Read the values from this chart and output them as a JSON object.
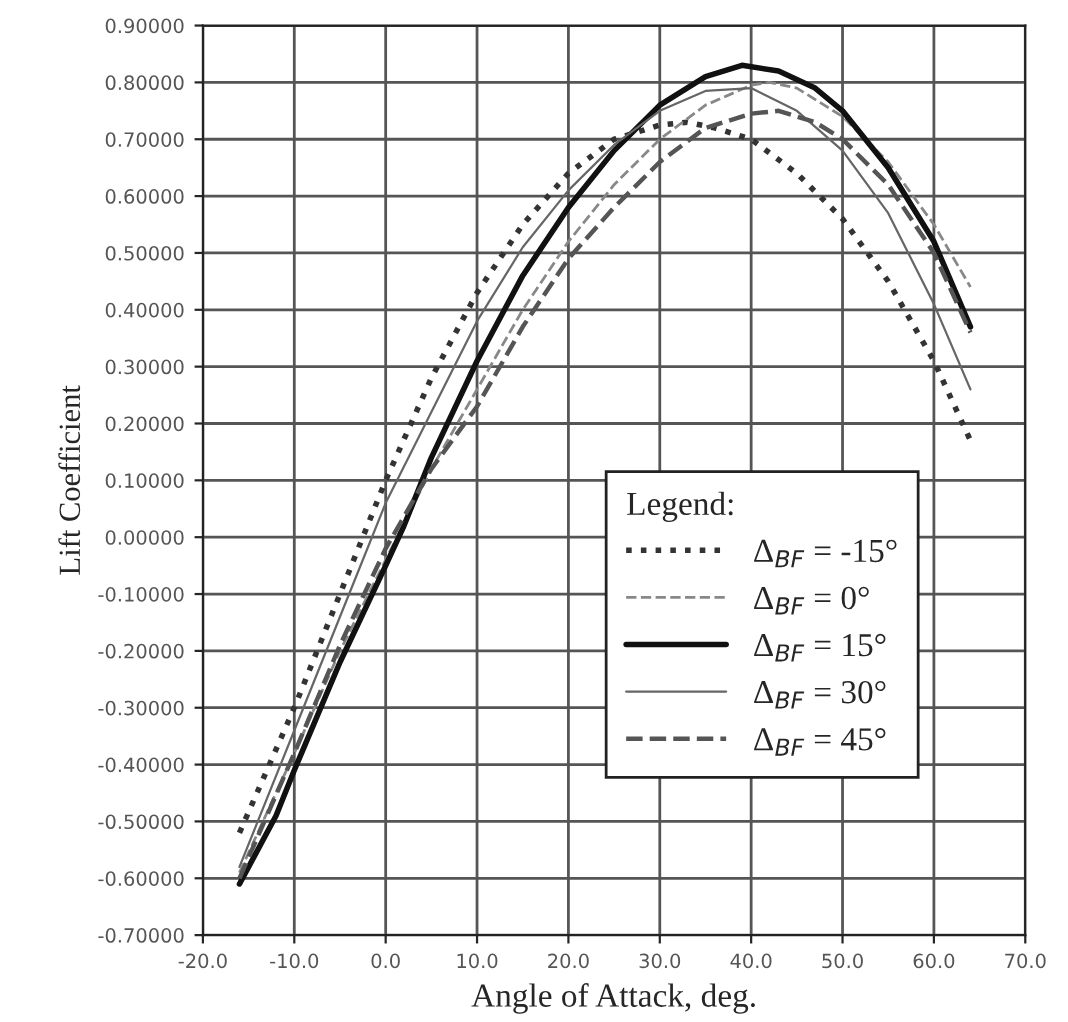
{
  "chart_data": {
    "type": "line",
    "xlabel": "Angle of Attack, deg.",
    "ylabel": "Lift Coefficient",
    "legend_title": "Legend:",
    "xlim": [
      -20,
      70
    ],
    "xticks": [
      {
        "value": -20,
        "label": "-20.0"
      },
      {
        "value": -10,
        "label": "-10.0"
      },
      {
        "value": 0,
        "label": "0.0"
      },
      {
        "value": 10,
        "label": "10.0"
      },
      {
        "value": 20,
        "label": "20.0"
      },
      {
        "value": 30,
        "label": "30.0"
      },
      {
        "value": 40,
        "label": "40.0"
      },
      {
        "value": 50,
        "label": "50.0"
      },
      {
        "value": 60,
        "label": "60.0"
      },
      {
        "value": 70,
        "label": "70.0"
      }
    ],
    "ylim": [
      -0.7,
      0.9
    ],
    "yticks": [
      {
        "value": -0.7,
        "label": "-0.70000"
      },
      {
        "value": -0.6,
        "label": "-0.60000"
      },
      {
        "value": -0.5,
        "label": "-0.50000"
      },
      {
        "value": -0.4,
        "label": "-0.40000"
      },
      {
        "value": -0.3,
        "label": "-0.30000"
      },
      {
        "value": -0.2,
        "label": "-0.20000"
      },
      {
        "value": -0.1,
        "label": "-0.10000"
      },
      {
        "value": 0,
        "label": "0.00000"
      },
      {
        "value": 0.1,
        "label": "0.10000"
      },
      {
        "value": 0.2,
        "label": "0.20000"
      },
      {
        "value": 0.3,
        "label": "0.30000"
      },
      {
        "value": 0.4,
        "label": "0.40000"
      },
      {
        "value": 0.5,
        "label": "0.50000"
      },
      {
        "value": 0.6,
        "label": "0.60000"
      },
      {
        "value": 0.7,
        "label": "0.70000"
      },
      {
        "value": 0.8,
        "label": "0.80000"
      },
      {
        "value": 0.9,
        "label": "0.90000"
      }
    ],
    "grid": true,
    "legend": "bottom right",
    "marker": "none",
    "series": [
      {
        "name": "Δ$_{BF}$ = -15°",
        "color": "#333333",
        "line_style": "dotted",
        "x": [
          -16,
          -10,
          -5,
          0,
          5,
          10,
          15,
          20,
          25,
          30,
          33,
          36,
          40,
          45,
          50,
          55,
          60,
          64
        ],
        "values": [
          -0.52,
          -0.3,
          -0.1,
          0.1,
          0.28,
          0.43,
          0.55,
          0.64,
          0.7,
          0.725,
          0.73,
          0.72,
          0.7,
          0.64,
          0.56,
          0.45,
          0.31,
          0.17
        ]
      },
      {
        "name": "Δ$_{BF}$ = 0°",
        "color": "#888888",
        "line_style": "dashed",
        "x": [
          -16,
          -10,
          -5,
          0,
          5,
          10,
          15,
          20,
          25,
          30,
          35,
          40,
          42,
          45,
          50,
          55,
          60,
          64
        ],
        "values": [
          -0.59,
          -0.38,
          -0.2,
          -0.04,
          0.12,
          0.26,
          0.4,
          0.52,
          0.62,
          0.7,
          0.76,
          0.795,
          0.8,
          0.79,
          0.74,
          0.66,
          0.55,
          0.44
        ]
      },
      {
        "name": "Δ$_{BF}$ = 15°",
        "color": "#111111",
        "line_style": "solid",
        "x": [
          -16,
          -12,
          -10,
          -5,
          0,
          2,
          5,
          10,
          15,
          20,
          25,
          30,
          35,
          39,
          43,
          47,
          50,
          55,
          60,
          64
        ],
        "values": [
          -0.61,
          -0.49,
          -0.41,
          -0.22,
          -0.05,
          0.02,
          0.14,
          0.31,
          0.46,
          0.58,
          0.68,
          0.76,
          0.81,
          0.83,
          0.82,
          0.79,
          0.75,
          0.65,
          0.52,
          0.37
        ]
      },
      {
        "name": "Δ$_{BF}$ = 30°",
        "color": "#666666",
        "line_style": "solid",
        "x": [
          -16,
          -10,
          -5,
          0,
          5,
          10,
          15,
          20,
          25,
          30,
          35,
          40,
          45,
          50,
          55,
          60,
          64
        ],
        "values": [
          -0.58,
          -0.34,
          -0.14,
          0.06,
          0.22,
          0.38,
          0.51,
          0.61,
          0.69,
          0.75,
          0.785,
          0.79,
          0.75,
          0.68,
          0.57,
          0.41,
          0.26
        ]
      },
      {
        "name": "Δ$_{BF}$ = 45°",
        "color": "#555555",
        "line_style": "dashed",
        "x": [
          -16,
          -10,
          -5,
          0,
          5,
          10,
          15,
          20,
          25,
          30,
          35,
          40,
          43,
          47,
          50,
          55,
          60,
          64
        ],
        "values": [
          -0.6,
          -0.38,
          -0.19,
          -0.02,
          0.12,
          0.23,
          0.37,
          0.49,
          0.58,
          0.66,
          0.72,
          0.745,
          0.75,
          0.73,
          0.7,
          0.62,
          0.5,
          0.36
        ]
      }
    ]
  }
}
